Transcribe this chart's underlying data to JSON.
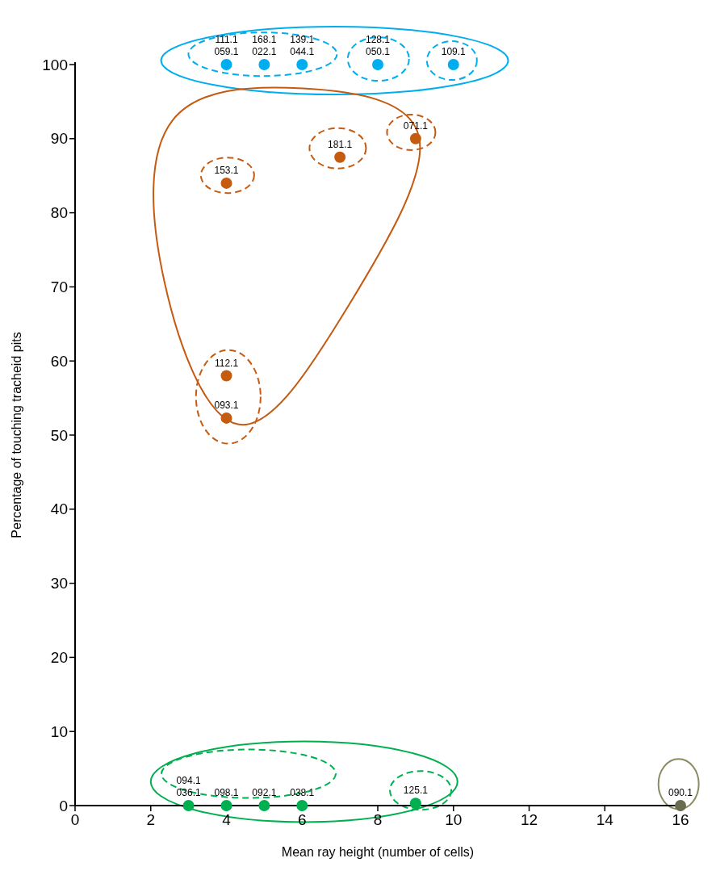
{
  "chart_data": {
    "type": "scatter",
    "xlabel": "Mean ray height (number of cells)",
    "ylabel": "Percentage of touching tracheid pits",
    "xlim": [
      0,
      16
    ],
    "ylim": [
      0,
      100
    ],
    "xticks": [
      0,
      2,
      4,
      6,
      8,
      10,
      12,
      14,
      16
    ],
    "yticks": [
      0,
      10,
      20,
      30,
      40,
      50,
      60,
      70,
      80,
      90,
      100
    ],
    "grid": false,
    "marker": "circle",
    "series": [
      {
        "color": "#00aeef",
        "x": [
          4,
          5,
          6,
          8,
          10
        ],
        "values": [
          100,
          100,
          100,
          100,
          100
        ]
      },
      {
        "color": "#c55a11",
        "x": [
          4,
          7,
          9,
          4,
          4
        ],
        "values": [
          84,
          87.5,
          90,
          58,
          52.3
        ]
      },
      {
        "color": "#00b050",
        "x": [
          3,
          4,
          5,
          6,
          9
        ],
        "values": [
          0,
          0,
          0,
          0,
          0.3
        ]
      },
      {
        "color": "#696a4e",
        "x": [
          16
        ],
        "values": [
          0
        ]
      }
    ],
    "annotations": [
      {
        "text": "111.1",
        "x": 4,
        "y": 100
      },
      {
        "text": "059.1",
        "x": 4,
        "y": 100
      },
      {
        "text": "168.1",
        "x": 5,
        "y": 100
      },
      {
        "text": "022.1",
        "x": 5,
        "y": 100
      },
      {
        "text": "139.1",
        "x": 6,
        "y": 100
      },
      {
        "text": "044.1",
        "x": 6,
        "y": 100
      },
      {
        "text": "128.1",
        "x": 8,
        "y": 100
      },
      {
        "text": "050.1",
        "x": 8,
        "y": 100
      },
      {
        "text": "109.1",
        "x": 10,
        "y": 100
      },
      {
        "text": "153.1",
        "x": 4,
        "y": 84
      },
      {
        "text": "181.1",
        "x": 7,
        "y": 87.5
      },
      {
        "text": "071.1",
        "x": 9,
        "y": 90
      },
      {
        "text": "112.1",
        "x": 4,
        "y": 58
      },
      {
        "text": "093.1",
        "x": 4,
        "y": 52.3
      },
      {
        "text": "094.1",
        "x": 3,
        "y": 0
      },
      {
        "text": "036.1",
        "x": 3,
        "y": 0
      },
      {
        "text": "098.1",
        "x": 4,
        "y": 0
      },
      {
        "text": "092.1",
        "x": 5,
        "y": 0
      },
      {
        "text": "038.1",
        "x": 6,
        "y": 0
      },
      {
        "text": "125.1",
        "x": 9,
        "y": 0.3
      },
      {
        "text": "090.1",
        "x": 16,
        "y": 0
      }
    ]
  }
}
